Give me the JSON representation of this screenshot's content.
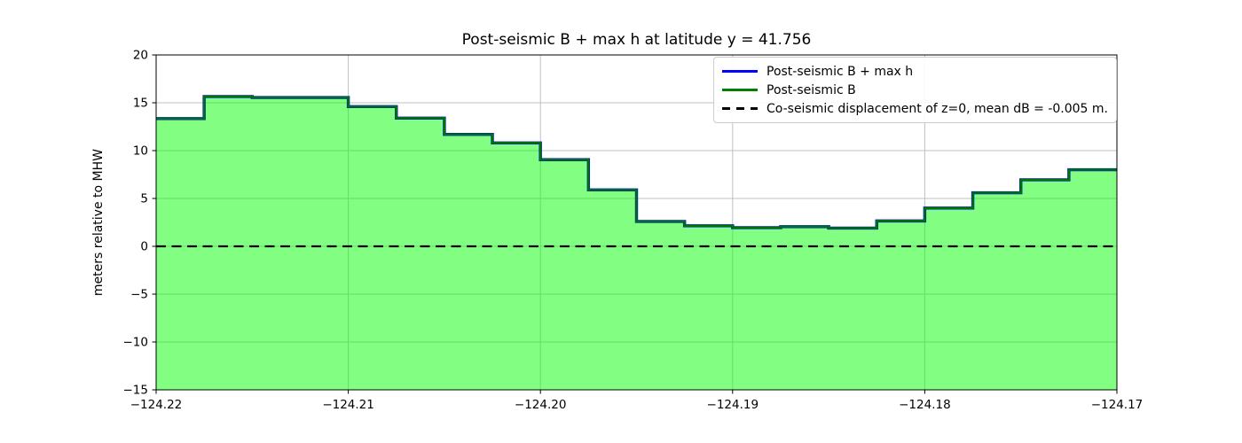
{
  "title": "Post-seismic B + max h at latitude y = 41.756",
  "ylabel": "meters relative to MHW",
  "chart_data": {
    "type": "area",
    "xlim": [
      -124.22,
      -124.17
    ],
    "ylim": [
      -15,
      20
    ],
    "x_start": -124.22,
    "x_step": 0.0025,
    "x_tick_values": [
      -124.22,
      -124.21,
      -124.2,
      -124.19,
      -124.18,
      -124.17
    ],
    "x_tick_labels": [
      "−124.22",
      "−124.21",
      "−124.20",
      "−124.19",
      "−124.18",
      "−124.17"
    ],
    "y_tick_values": [
      20,
      15,
      10,
      5,
      0,
      -5,
      -10,
      -15
    ],
    "y_tick_labels": [
      "20",
      "15",
      "10",
      "5",
      "0",
      "−5",
      "−10",
      "−15"
    ],
    "grid": true,
    "legend_position": "upper right",
    "series": [
      {
        "name": "Post-seismic B + max h",
        "style": "solid",
        "color": "#0000ff",
        "values": [
          13.35,
          15.65,
          15.55,
          15.55,
          14.6,
          13.4,
          11.7,
          10.8,
          9.05,
          5.9,
          2.6,
          2.15,
          1.95,
          2.05,
          1.9,
          2.65,
          4.0,
          5.6,
          6.95,
          8.0
        ]
      },
      {
        "name": "Post-seismic B",
        "style": "solid",
        "color": "#007400",
        "legend_color": "#008000",
        "fill": "rgba(0,255,0,0.49)",
        "values": [
          13.35,
          15.65,
          15.55,
          15.55,
          14.6,
          13.4,
          11.7,
          10.8,
          9.05,
          5.9,
          2.6,
          2.15,
          1.95,
          2.05,
          1.9,
          2.65,
          4.0,
          5.6,
          6.95,
          8.0
        ]
      },
      {
        "name": "Co-seismic displacement of z=0, mean dB = -0.005 m.",
        "style": "dashed",
        "color": "#000000",
        "y": 0
      }
    ],
    "style": {
      "grid_color": "#c0c0c0",
      "spine_color": "#000000",
      "tick_label_size": 13.5,
      "dash_pattern": "11 6.5"
    }
  }
}
